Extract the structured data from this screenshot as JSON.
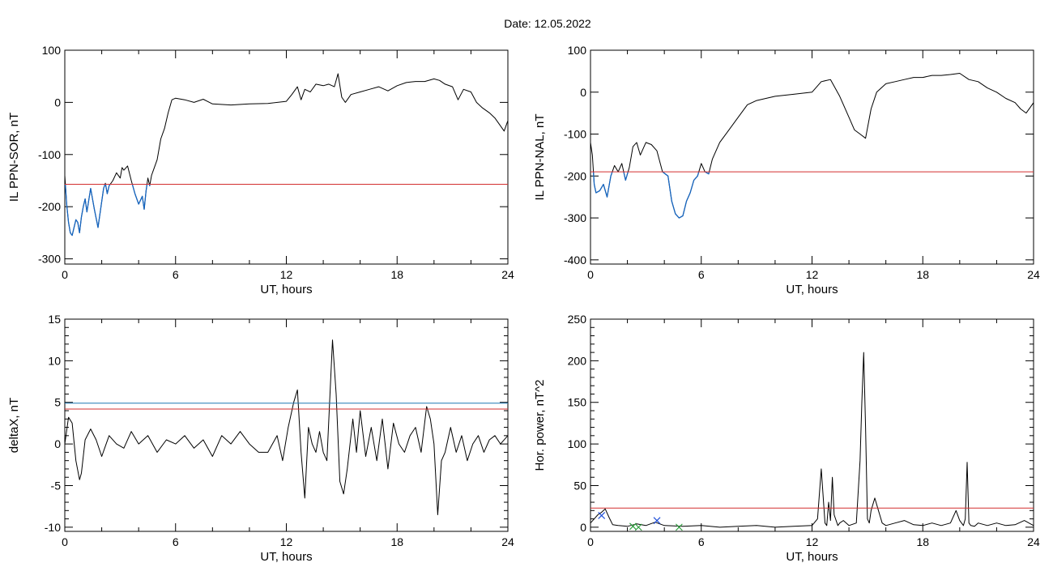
{
  "page": {
    "title": "Date:  12.05.2022"
  },
  "colors": {
    "trace": "#000000",
    "highlight": "#1565c0",
    "threshold_red": "#d32f2f",
    "threshold_blue": "#1f78b4",
    "marker_blue": "#1f4fd8",
    "marker_green": "#2e9e3e"
  },
  "chart_data": [
    {
      "id": "il-ppn-sor",
      "type": "line",
      "xlabel": "UT, hours",
      "ylabel": "IL PPN-SOR, nT",
      "xlim": [
        0,
        24
      ],
      "ylim": [
        -310,
        100
      ],
      "xticks": [
        0,
        6,
        12,
        18,
        24
      ],
      "yticks": [
        -300,
        -200,
        -100,
        0,
        100
      ],
      "minor_x": 2,
      "minor_y": 0,
      "thresholds": [
        {
          "y": -157,
          "color": "#d32f2f"
        }
      ],
      "highlight": {
        "color": "#1565c0",
        "below": -157,
        "x_range": [
          0,
          4.7
        ]
      },
      "series": [
        {
          "x": [
            0.0,
            0.1,
            0.2,
            0.3,
            0.4,
            0.5,
            0.6,
            0.7,
            0.8,
            0.9,
            1.0,
            1.1,
            1.2,
            1.4,
            1.6,
            1.8,
            2.0,
            2.1,
            2.2,
            2.3,
            2.4,
            2.6,
            2.8,
            3.0,
            3.1,
            3.2,
            3.4,
            3.6,
            3.8,
            4.0,
            4.2,
            4.3,
            4.4,
            4.5,
            4.6,
            4.7,
            4.8,
            5.0,
            5.2,
            5.4,
            5.6,
            5.8,
            6.0,
            6.5,
            7.0,
            7.5,
            8.0,
            9.0,
            10.0,
            11.0,
            12.0,
            12.3,
            12.6,
            12.8,
            13.0,
            13.3,
            13.6,
            14.0,
            14.3,
            14.6,
            14.8,
            15.0,
            15.2,
            15.5,
            16.0,
            16.5,
            17.0,
            17.5,
            18.0,
            18.5,
            19.0,
            19.5,
            20.0,
            20.3,
            20.6,
            21.0,
            21.3,
            21.6,
            22.0,
            22.3,
            22.6,
            23.0,
            23.3,
            23.6,
            23.8,
            24.0
          ],
          "y": [
            -140,
            -195,
            -230,
            -250,
            -255,
            -240,
            -225,
            -230,
            -250,
            -220,
            -200,
            -185,
            -210,
            -165,
            -205,
            -240,
            -190,
            -165,
            -155,
            -175,
            -160,
            -150,
            -135,
            -145,
            -125,
            -130,
            -122,
            -150,
            -175,
            -195,
            -180,
            -205,
            -170,
            -145,
            -160,
            -140,
            -130,
            -110,
            -70,
            -50,
            -20,
            5,
            8,
            5,
            0,
            6,
            -3,
            -5,
            -3,
            -2,
            2,
            15,
            30,
            5,
            25,
            20,
            35,
            32,
            35,
            30,
            55,
            10,
            0,
            15,
            20,
            25,
            30,
            22,
            32,
            38,
            40,
            40,
            45,
            42,
            35,
            30,
            5,
            25,
            20,
            0,
            -10,
            -20,
            -30,
            -45,
            -55,
            -35
          ]
        }
      ]
    },
    {
      "id": "il-ppn-nal",
      "type": "line",
      "xlabel": "UT, hours",
      "ylabel": "IL PPN-NAL, nT",
      "xlim": [
        0,
        24
      ],
      "ylim": [
        -410,
        100
      ],
      "xticks": [
        0,
        6,
        12,
        18,
        24
      ],
      "yticks": [
        -400,
        -300,
        -200,
        -100,
        0,
        100
      ],
      "minor_x": 2,
      "minor_y": 0,
      "thresholds": [
        {
          "y": -190,
          "color": "#d32f2f"
        }
      ],
      "highlight": {
        "color": "#1565c0",
        "below": -190,
        "x_range": [
          0,
          6.5
        ]
      },
      "series": [
        {
          "x": [
            0.0,
            0.1,
            0.2,
            0.3,
            0.5,
            0.7,
            0.9,
            1.1,
            1.3,
            1.5,
            1.7,
            1.9,
            2.1,
            2.3,
            2.5,
            2.7,
            3.0,
            3.3,
            3.6,
            3.9,
            4.2,
            4.4,
            4.6,
            4.8,
            5.0,
            5.2,
            5.4,
            5.6,
            5.8,
            6.0,
            6.2,
            6.4,
            6.6,
            7.0,
            7.5,
            8.0,
            8.5,
            9.0,
            10.0,
            11.0,
            12.0,
            12.5,
            13.0,
            13.5,
            14.0,
            14.3,
            14.6,
            14.9,
            15.2,
            15.5,
            16.0,
            16.5,
            17.0,
            17.5,
            18.0,
            18.5,
            19.0,
            19.5,
            20.0,
            20.5,
            21.0,
            21.5,
            22.0,
            22.5,
            23.0,
            23.3,
            23.6,
            24.0
          ],
          "y": [
            -120,
            -150,
            -220,
            -240,
            -235,
            -220,
            -250,
            -200,
            -175,
            -190,
            -170,
            -210,
            -180,
            -130,
            -120,
            -150,
            -120,
            -125,
            -140,
            -190,
            -200,
            -260,
            -290,
            -300,
            -295,
            -260,
            -240,
            -210,
            -200,
            -170,
            -190,
            -195,
            -160,
            -120,
            -90,
            -60,
            -30,
            -20,
            -10,
            -5,
            0,
            25,
            30,
            -10,
            -60,
            -90,
            -100,
            -110,
            -40,
            0,
            20,
            25,
            30,
            35,
            35,
            40,
            40,
            42,
            45,
            30,
            25,
            10,
            0,
            -15,
            -25,
            -40,
            -50,
            -25
          ]
        }
      ]
    },
    {
      "id": "deltax",
      "type": "line",
      "xlabel": "UT, hours",
      "ylabel": "deltaX, nT",
      "xlim": [
        0,
        24
      ],
      "ylim": [
        -10.5,
        15
      ],
      "xticks": [
        0,
        6,
        12,
        18,
        24
      ],
      "yticks": [
        -10,
        -5,
        0,
        5,
        10,
        15
      ],
      "minor_x": 2,
      "minor_y": 4,
      "thresholds": [
        {
          "y": 4.9,
          "color": "#1f78b4"
        },
        {
          "y": 4.2,
          "color": "#d32f2f"
        }
      ],
      "series": [
        {
          "x": [
            0.0,
            0.2,
            0.4,
            0.6,
            0.8,
            0.9,
            1.1,
            1.4,
            1.7,
            2.0,
            2.4,
            2.8,
            3.2,
            3.6,
            4.0,
            4.5,
            5.0,
            5.5,
            6.0,
            6.5,
            7.0,
            7.5,
            8.0,
            8.5,
            9.0,
            9.5,
            10.0,
            10.5,
            11.0,
            11.5,
            11.8,
            12.1,
            12.4,
            12.6,
            12.8,
            13.0,
            13.2,
            13.4,
            13.6,
            13.8,
            14.0,
            14.2,
            14.5,
            14.7,
            14.9,
            15.1,
            15.3,
            15.6,
            15.8,
            16.0,
            16.3,
            16.6,
            16.9,
            17.2,
            17.5,
            17.8,
            18.1,
            18.4,
            18.7,
            19.0,
            19.3,
            19.6,
            19.8,
            20.0,
            20.2,
            20.4,
            20.6,
            20.9,
            21.2,
            21.5,
            21.8,
            22.1,
            22.4,
            22.7,
            23.0,
            23.3,
            23.6,
            24.0
          ],
          "y": [
            0,
            3.2,
            2.5,
            -2,
            -4.3,
            -3.5,
            0.5,
            1.8,
            0.5,
            -1.5,
            1,
            0,
            -0.5,
            1.5,
            0,
            1,
            -1,
            0.5,
            0,
            1,
            -0.5,
            0.5,
            -1.5,
            1,
            0,
            1.5,
            0,
            -1,
            -1,
            1,
            -2,
            2,
            5,
            6.5,
            -1,
            -6.5,
            2,
            0,
            -1,
            1.5,
            -1,
            -2,
            12.5,
            6,
            -4.5,
            -6,
            -3,
            3,
            -1,
            4,
            -1.5,
            2,
            -2,
            3,
            -3,
            2.5,
            0,
            -1,
            1,
            2,
            -1,
            4.5,
            3,
            0,
            -8.5,
            -2,
            -1,
            2,
            -1,
            1,
            -2,
            0,
            1,
            -1,
            0.5,
            1,
            0,
            1
          ]
        }
      ]
    },
    {
      "id": "hor-power",
      "type": "line",
      "xlabel": "UT, hours",
      "ylabel": "Hor. power, nT^2",
      "xlim": [
        0,
        24
      ],
      "ylim": [
        -5,
        250
      ],
      "xticks": [
        0,
        6,
        12,
        18,
        24
      ],
      "yticks": [
        0,
        50,
        100,
        150,
        200,
        250
      ],
      "minor_x": 2,
      "minor_y": 4,
      "thresholds": [
        {
          "y": 23,
          "color": "#d32f2f"
        }
      ],
      "markers": [
        {
          "x": 0.6,
          "y": 14,
          "color": "#1f4fd8"
        },
        {
          "x": 2.3,
          "y": 1,
          "color": "#2e9e3e"
        },
        {
          "x": 2.6,
          "y": 0,
          "color": "#2e9e3e"
        },
        {
          "x": 3.6,
          "y": 8,
          "color": "#1f4fd8"
        },
        {
          "x": 4.8,
          "y": 0,
          "color": "#2e9e3e"
        }
      ],
      "series": [
        {
          "x": [
            0.0,
            0.2,
            0.4,
            0.6,
            0.8,
            1.0,
            1.2,
            1.5,
            2.0,
            2.5,
            3.0,
            3.5,
            4.0,
            5.0,
            6.0,
            7.0,
            8.0,
            9.0,
            10.0,
            11.0,
            12.0,
            12.3,
            12.5,
            12.7,
            12.8,
            12.9,
            13.0,
            13.1,
            13.2,
            13.4,
            13.5,
            13.7,
            14.0,
            14.4,
            14.6,
            14.7,
            14.8,
            14.9,
            15.0,
            15.1,
            15.2,
            15.4,
            15.6,
            15.8,
            16.0,
            16.5,
            17.0,
            17.5,
            18.0,
            18.5,
            19.0,
            19.5,
            19.8,
            20.0,
            20.2,
            20.3,
            20.4,
            20.5,
            20.6,
            20.8,
            21.0,
            21.5,
            22.0,
            22.5,
            23.0,
            23.5,
            24.0
          ],
          "y": [
            5,
            10,
            15,
            18,
            22,
            12,
            3,
            2,
            1,
            4,
            2,
            6,
            2,
            1,
            2,
            0,
            1,
            2,
            0,
            1,
            2,
            10,
            70,
            5,
            2,
            30,
            8,
            60,
            15,
            2,
            5,
            8,
            2,
            5,
            80,
            150,
            210,
            120,
            10,
            5,
            20,
            35,
            20,
            5,
            2,
            5,
            8,
            3,
            2,
            5,
            2,
            5,
            20,
            8,
            2,
            10,
            78,
            5,
            2,
            1,
            5,
            2,
            5,
            2,
            3,
            8,
            2
          ]
        }
      ]
    }
  ]
}
